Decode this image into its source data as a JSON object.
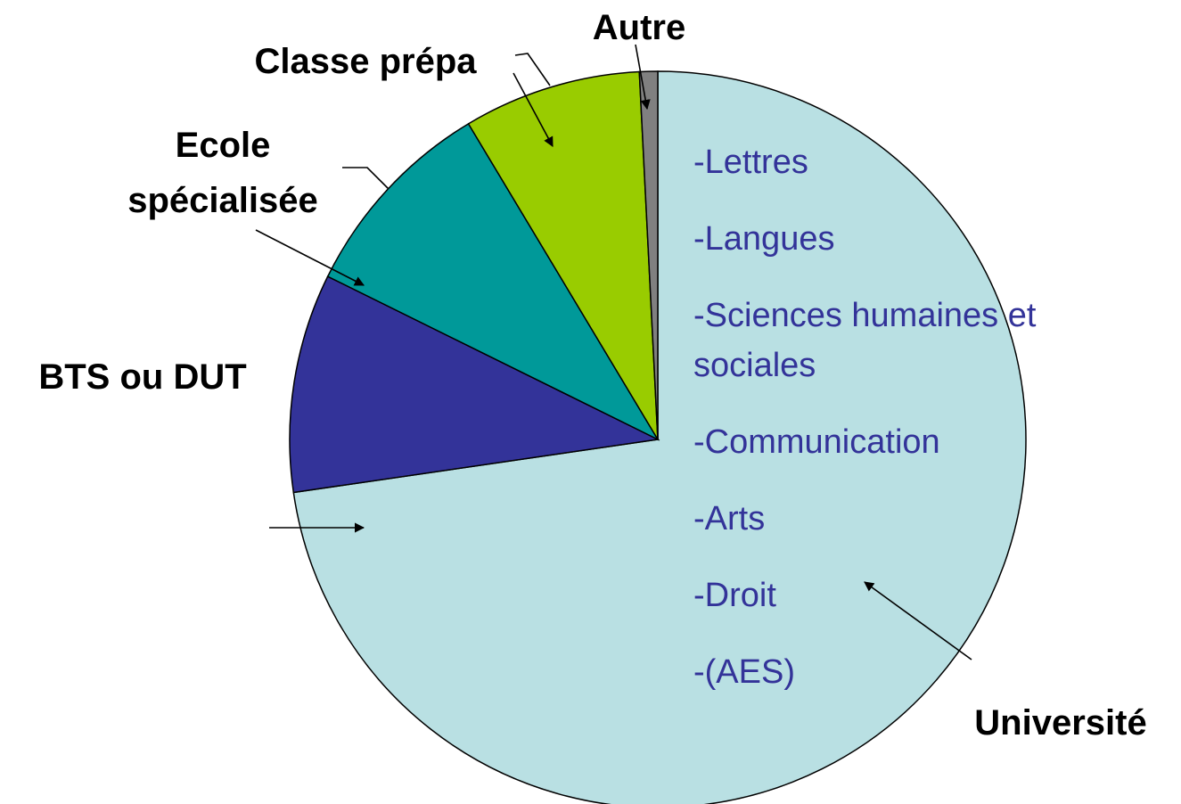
{
  "chart_data": {
    "type": "pie",
    "categories": [
      "Université",
      "BTS ou DUT",
      "Ecole spécialisée",
      "Classe prépa",
      "Autre"
    ],
    "values": [
      72.7,
      9.6,
      9.1,
      7.8,
      0.8
    ],
    "colors": [
      "#b9e0e3",
      "#333399",
      "#009999",
      "#99cc00",
      "#808080"
    ],
    "annotations": [
      "-Lettres",
      "-Langues",
      "-Sciences humaines et sociales",
      "-Communication",
      "-Arts",
      "-Droit",
      "-(AES)"
    ]
  }
}
